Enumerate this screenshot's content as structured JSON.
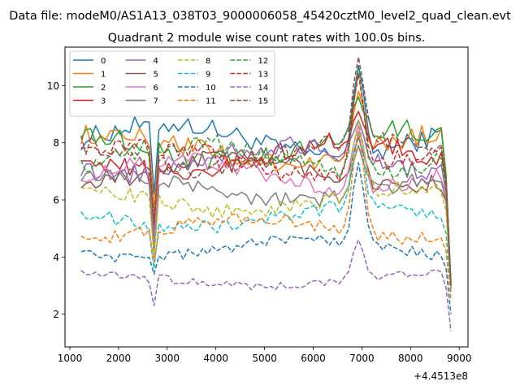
{
  "chart_data": {
    "type": "line",
    "suptitle": "Data file: modeM0/AS1A13_038T03_9000006058_45420cztM0_level2_quad_clean.evt",
    "title": "Quadrant 2 module wise count rates with 100.0s bins.",
    "xlabel": "",
    "ylabel": "",
    "x_offset_label": "+4.4513e8",
    "x_start": 1230,
    "x_step": 100,
    "xlim": [
      900,
      9180
    ],
    "ylim": [
      0.85,
      11.35
    ],
    "xticks": [
      1000,
      2000,
      3000,
      4000,
      5000,
      6000,
      7000,
      8000,
      9000
    ],
    "yticks": [
      2,
      4,
      6,
      8,
      10
    ],
    "legend_position": "upper-left",
    "series": [
      {
        "name": "0",
        "color": "#1f77b4",
        "dash": "solid",
        "base": 8.1,
        "dip": 6.2,
        "peak": 10.7,
        "end": 3.0
      },
      {
        "name": "1",
        "color": "#ff7f0e",
        "dash": "solid",
        "base": 7.8,
        "dip": 5.7,
        "peak": 9.8,
        "end": 3.0
      },
      {
        "name": "2",
        "color": "#2ca02c",
        "dash": "solid",
        "base": 7.9,
        "dip": 4.3,
        "peak": 9.6,
        "end": 3.1
      },
      {
        "name": "3",
        "color": "#d62728",
        "dash": "solid",
        "base": 7.5,
        "dip": 5.0,
        "peak": 9.1,
        "end": 3.0
      },
      {
        "name": "4",
        "color": "#9467bd",
        "dash": "solid",
        "base": 7.4,
        "dip": 4.8,
        "peak": 8.8,
        "end": 3.0
      },
      {
        "name": "5",
        "color": "#8c564b",
        "dash": "solid",
        "base": 7.0,
        "dip": 4.5,
        "peak": 8.2,
        "end": 2.9
      },
      {
        "name": "6",
        "color": "#e377c2",
        "dash": "solid",
        "base": 6.9,
        "dip": 4.3,
        "peak": 8.6,
        "end": 2.9
      },
      {
        "name": "7",
        "color": "#7f7f7f",
        "dash": "solid",
        "base": 6.4,
        "dip": 4.1,
        "peak": 7.9,
        "end": 2.9
      },
      {
        "name": "8",
        "color": "#bcbd22",
        "dash": "dashed",
        "base": 6.0,
        "dip": 4.0,
        "peak": 8.8,
        "end": 2.8
      },
      {
        "name": "9",
        "color": "#17becf",
        "dash": "dashed",
        "base": 5.4,
        "dip": 3.6,
        "peak": 8.4,
        "end": 2.7
      },
      {
        "name": "10",
        "color": "#1f77b4",
        "dash": "dashed",
        "base": 4.3,
        "dip": 3.4,
        "peak": 7.3,
        "end": 2.0
      },
      {
        "name": "11",
        "color": "#ff7f0e",
        "dash": "dashed",
        "base": 5.0,
        "dip": 3.8,
        "peak": 8.4,
        "end": 2.5
      },
      {
        "name": "12",
        "color": "#2ca02c",
        "dash": "dashed",
        "base": 7.5,
        "dip": 5.4,
        "peak": 10.6,
        "end": 3.0
      },
      {
        "name": "13",
        "color": "#d62728",
        "dash": "dashed",
        "base": 7.4,
        "dip": 5.2,
        "peak": 10.4,
        "end": 3.0
      },
      {
        "name": "14",
        "color": "#9467bd",
        "dash": "dashed",
        "base": 3.2,
        "dip": 2.3,
        "peak": 4.6,
        "end": 1.4
      },
      {
        "name": "15",
        "color": "#8c564b",
        "dash": "dashed",
        "base": 7.6,
        "dip": 5.1,
        "peak": 11.0,
        "end": 3.1
      }
    ]
  }
}
